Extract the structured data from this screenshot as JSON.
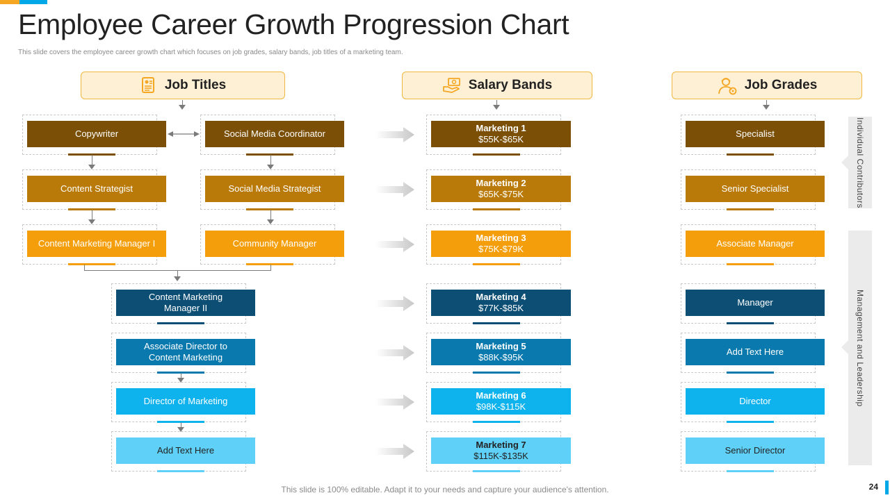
{
  "title": "Employee Career Growth Progression Chart",
  "subtitle": "This slide covers the employee career growth chart which focuses on job grades, salary bands, job titles of a marketing team.",
  "headers": {
    "job_titles": "Job Titles",
    "salary_bands": "Salary Bands",
    "job_grades": "Job Grades"
  },
  "job_titles": {
    "copywriter": "Copywriter",
    "social_media_coordinator": "Social Media Coordinator",
    "content_strategist": "Content Strategist",
    "social_media_strategist": "Social Media Strategist",
    "content_marketing_manager_1": "Content Marketing Manager I",
    "community_manager": "Community Manager",
    "content_marketing_manager_2_l1": "Content Marketing",
    "content_marketing_manager_2_l2": "Manager II",
    "associate_director_l1": "Associate Director to",
    "associate_director_l2": "Content Marketing",
    "director_of_marketing": "Director of Marketing",
    "add_text": "Add Text Here"
  },
  "salary_bands": [
    {
      "name": "Marketing 1",
      "range": "$55K-$65K"
    },
    {
      "name": "Marketing 2",
      "range": "$65K-$75K"
    },
    {
      "name": "Marketing 3",
      "range": "$75K-$79K"
    },
    {
      "name": "Marketing 4",
      "range": "$77K-$85K"
    },
    {
      "name": "Marketing 5",
      "range": "$88K-$95K"
    },
    {
      "name": "Marketing 6",
      "range": "$98K-$115K"
    },
    {
      "name": "Marketing 7",
      "range": "$115K-$135K"
    }
  ],
  "job_grades": [
    "Specialist",
    "Senior Specialist",
    "Associate Manager",
    "Manager",
    "Add Text Here",
    "Director",
    "Senior Director"
  ],
  "side_labels": {
    "individual": "Individual Contributors",
    "management": "Management and Leadership"
  },
  "footer": "This slide is 100% editable. Adapt it to your needs and capture your audience's attention.",
  "page_number": "24",
  "colors": {
    "level1": "#7b4f06",
    "level2": "#b97a09",
    "level3": "#f59e0b",
    "level4": "#0d4f74",
    "level5": "#0a79ad",
    "level6": "#0eb2ec",
    "level7": "#5fd0f7",
    "accent_orange": "#f5a623",
    "accent_blue": "#00a8e8"
  }
}
